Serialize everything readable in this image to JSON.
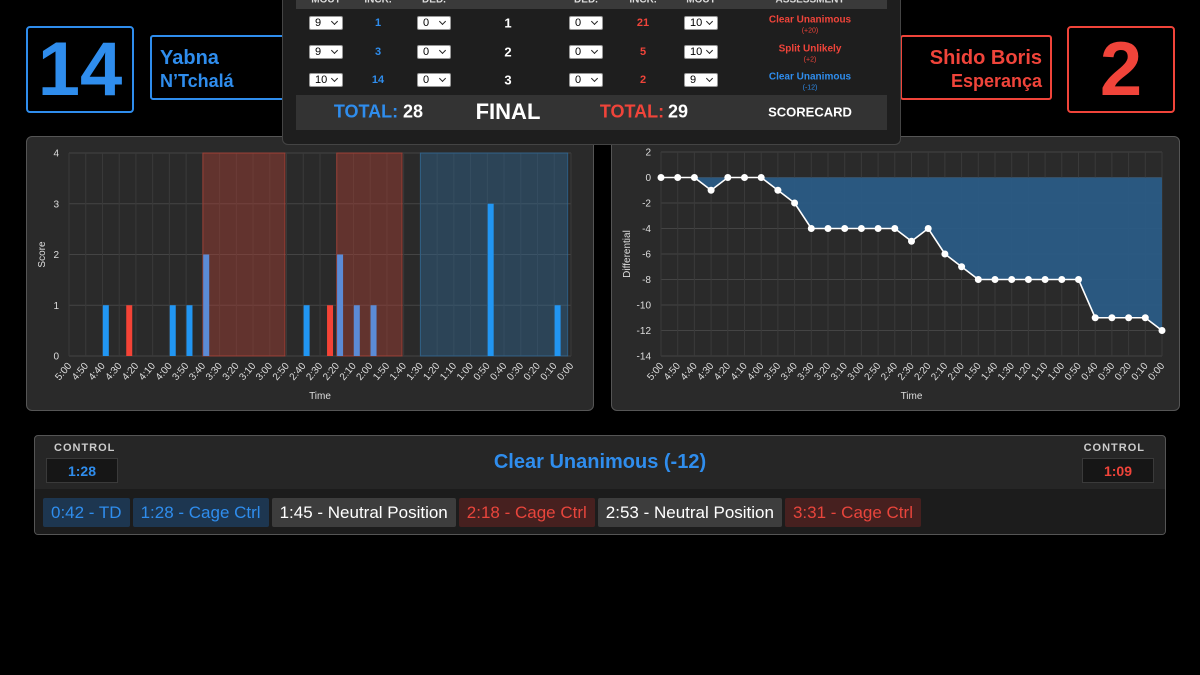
{
  "blue_corner": {
    "score": 14,
    "first_name": "Yabna",
    "last_name": "N’Tchalá"
  },
  "red_corner": {
    "score": 2,
    "first_name": "Shido Boris",
    "last_name": "Esperança"
  },
  "scorecard": {
    "blue_headers": [
      "MOUT",
      "INCR.",
      "DED."
    ],
    "red_headers": [
      "DED.",
      "INCR.",
      "MOUT"
    ],
    "assessment_header": "ASSESSMENT",
    "rows": [
      {
        "blue_select": 9,
        "blue_incr": 1,
        "blue_ded": 0,
        "round": 1,
        "red_ded": 0,
        "red_incr": 21,
        "red_select": 10,
        "assessment": "Clear Unanimous",
        "assessment_detail": "(+20)",
        "assessment_color": "#f0443a"
      },
      {
        "blue_select": 9,
        "blue_incr": 3,
        "blue_ded": 0,
        "round": 2,
        "red_ded": 0,
        "red_incr": 5,
        "red_select": 10,
        "assessment": "Split Unlikely",
        "assessment_detail": "(+2)",
        "assessment_color": "#f0443a"
      },
      {
        "blue_select": 10,
        "blue_incr": 14,
        "blue_ded": 0,
        "round": 3,
        "red_ded": 0,
        "red_incr": 2,
        "red_select": 9,
        "assessment": "Clear Unanimous",
        "assessment_detail": "(-12)",
        "assessment_color": "#2f8ded"
      }
    ],
    "blue_total_label": "TOTAL:",
    "blue_total": 28,
    "final": "FINAL",
    "red_total_label": "TOTAL:",
    "red_total": 29,
    "scorecard_label": "SCORECARD"
  },
  "chart_data": [
    {
      "type": "bar",
      "x_label": "Time",
      "y_label": "Score",
      "xlim": [
        300,
        0
      ],
      "xticks": [
        {
          "value": 300,
          "label": "5:00"
        },
        {
          "value": 290,
          "label": "4:50"
        },
        {
          "value": 280,
          "label": "4:40"
        },
        {
          "value": 270,
          "label": "4:30"
        },
        {
          "value": 260,
          "label": "4:20"
        },
        {
          "value": 250,
          "label": "4:10"
        },
        {
          "value": 240,
          "label": "4:00"
        },
        {
          "value": 230,
          "label": "3:50"
        },
        {
          "value": 220,
          "label": "3:40"
        },
        {
          "value": 210,
          "label": "3:30"
        },
        {
          "value": 200,
          "label": "3:20"
        },
        {
          "value": 190,
          "label": "3:10"
        },
        {
          "value": 180,
          "label": "3:00"
        },
        {
          "value": 170,
          "label": "2:50"
        },
        {
          "value": 160,
          "label": "2:40"
        },
        {
          "value": 150,
          "label": "2:30"
        },
        {
          "value": 140,
          "label": "2:20"
        },
        {
          "value": 130,
          "label": "2:10"
        },
        {
          "value": 120,
          "label": "2:00"
        },
        {
          "value": 110,
          "label": "1:50"
        },
        {
          "value": 100,
          "label": "1:40"
        },
        {
          "value": 90,
          "label": "1:30"
        },
        {
          "value": 80,
          "label": "1:20"
        },
        {
          "value": 70,
          "label": "1:10"
        },
        {
          "value": 60,
          "label": "1:00"
        },
        {
          "value": 50,
          "label": "0:50"
        },
        {
          "value": 40,
          "label": "0:40"
        },
        {
          "value": 30,
          "label": "0:30"
        },
        {
          "value": 20,
          "label": "0:20"
        },
        {
          "value": 10,
          "label": "0:10"
        },
        {
          "value": 0,
          "label": "0:00"
        }
      ],
      "ylim": [
        0,
        4
      ],
      "yticks": [
        0,
        1,
        2,
        3,
        4
      ],
      "grid": true,
      "regions": [
        {
          "start": 220,
          "end": 171,
          "color": "#b74134"
        },
        {
          "start": 140,
          "end": 101,
          "color": "#b74134"
        },
        {
          "start": 90,
          "end": 2,
          "color": "#2f6c9c"
        }
      ],
      "series": [
        {
          "color": "#2196f3",
          "x": [
            278,
            238,
            228,
            158,
            48,
            8
          ],
          "values": [
            1,
            1,
            1,
            1,
            3,
            1
          ]
        },
        {
          "color": "#f44336",
          "x": [
            264,
            144
          ],
          "values": [
            1,
            1
          ]
        },
        {
          "color": "#5b8bd6",
          "x": [
            218,
            138,
            128,
            118
          ],
          "values": [
            2,
            2,
            1,
            1
          ]
        }
      ]
    },
    {
      "type": "line",
      "x_label": "Time",
      "y_label": "Differential",
      "categories": [
        "5:00",
        "4:50",
        "4:40",
        "4:30",
        "4:20",
        "4:10",
        "4:00",
        "3:50",
        "3:40",
        "3:30",
        "3:20",
        "3:10",
        "3:00",
        "2:50",
        "2:40",
        "2:30",
        "2:20",
        "2:10",
        "2:00",
        "1:50",
        "1:40",
        "1:30",
        "1:20",
        "1:10",
        "1:00",
        "0:50",
        "0:40",
        "0:30",
        "0:20",
        "0:10",
        "0:00"
      ],
      "values": [
        0,
        0,
        0,
        -1,
        0,
        0,
        0,
        -1,
        -2,
        -4,
        -4,
        -4,
        -4,
        -4,
        -4,
        -5,
        -4,
        -6,
        -7,
        -8,
        -8,
        -8,
        -8,
        -8,
        -8,
        -8,
        -11,
        -11,
        -11,
        -11,
        -12
      ],
      "ylim": [
        -14,
        2
      ],
      "yticks": [
        2,
        0,
        -2,
        -4,
        -6,
        -8,
        -10,
        -12,
        -14
      ],
      "grid": true,
      "color": "#ffffff",
      "area_color": "#2a5d8a"
    }
  ],
  "control": {
    "blue_label": "CONTROL",
    "blue_time": "1:28",
    "verdict": "Clear Unanimous (-12)",
    "red_label": "CONTROL",
    "red_time": "1:09"
  },
  "events": [
    {
      "label": "0:42 - TD",
      "color": "#2f8ded",
      "background": "#1d3650"
    },
    {
      "label": "1:28 - Cage Ctrl",
      "color": "#2f8ded",
      "background": "#1d3650"
    },
    {
      "label": "1:45 - Neutral Position",
      "color": "#ffffff",
      "background": "#3d3d3d"
    },
    {
      "label": "2:18 - Cage Ctrl",
      "color": "#e8453c",
      "background": "#46201f"
    },
    {
      "label": "2:53 - Neutral Position",
      "color": "#ffffff",
      "background": "#3d3d3d"
    },
    {
      "label": "3:31 - Cage Ctrl",
      "color": "#e8453c",
      "background": "#46201f"
    }
  ]
}
